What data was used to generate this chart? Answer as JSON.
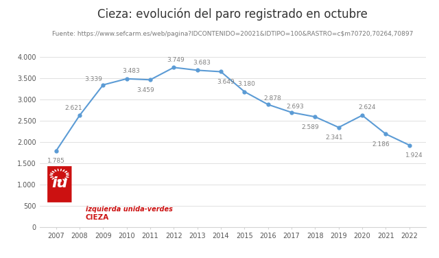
{
  "title": "Cieza: evolución del paro registrado en octubre",
  "subtitle": "Fuente: https://www.sefcarm.es/web/pagina?IDCONTENIDO=20021&IDTIPO=100&RASTRO=c$m70720,70264,70897",
  "years": [
    2007,
    2008,
    2009,
    2010,
    2011,
    2012,
    2013,
    2014,
    2015,
    2016,
    2017,
    2018,
    2019,
    2020,
    2021,
    2022
  ],
  "values": [
    1785,
    2621,
    3339,
    3483,
    3459,
    3749,
    3683,
    3649,
    3180,
    2878,
    2693,
    2589,
    2341,
    2624,
    2186,
    1924
  ],
  "labels": [
    "1.785",
    "2.621",
    "3.339",
    "3.483",
    "3.459",
    "3.749",
    "3.683",
    "3.649",
    "3.180",
    "2.878",
    "2.693",
    "2.589",
    "2.341",
    "2.624",
    "2.186",
    "1.924"
  ],
  "label_offsets_x": [
    0,
    -6,
    -10,
    5,
    -5,
    2,
    5,
    5,
    2,
    5,
    4,
    -5,
    -5,
    5,
    -5,
    5
  ],
  "label_offsets_y": [
    -10,
    8,
    6,
    8,
    -11,
    8,
    8,
    -11,
    8,
    6,
    6,
    -11,
    -11,
    8,
    -11,
    -11
  ],
  "line_color": "#5b9bd5",
  "marker_color": "#5b9bd5",
  "label_color": "#808080",
  "title_fontsize": 12,
  "subtitle_fontsize": 6.5,
  "label_fontsize": 6.5,
  "tick_fontsize": 7,
  "ylim": [
    0,
    4000
  ],
  "yticks": [
    0,
    500,
    1000,
    1500,
    2000,
    2500,
    3000,
    3500,
    4000
  ],
  "ytick_labels": [
    "0",
    "500",
    "1.000",
    "1.500",
    "2.000",
    "2.500",
    "3.000",
    "3.500",
    "4.000"
  ],
  "bg_color": "#ffffff",
  "grid_color": "#d3d3d3",
  "logo_red": "#cc1111",
  "logo_text": "izquierda unida-verdes",
  "logo_text2": "CIEZA"
}
